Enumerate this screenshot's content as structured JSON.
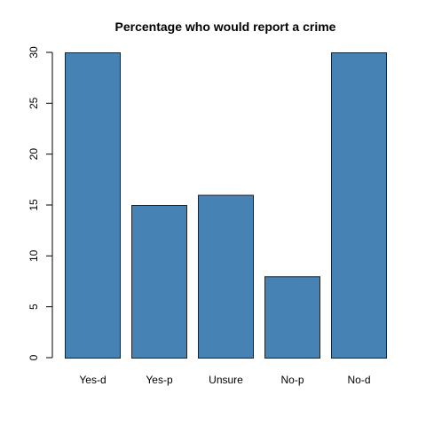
{
  "chart_data": {
    "type": "bar",
    "title": "Percentage who would report a crime",
    "xlabel": "",
    "ylabel": "",
    "categories": [
      "Yes-d",
      "Yes-p",
      "Unsure",
      "No-p",
      "No-d"
    ],
    "values": [
      30,
      15,
      16,
      8,
      30
    ],
    "yticks": [
      0,
      5,
      10,
      15,
      20,
      25,
      30
    ],
    "ylim": [
      0,
      30
    ],
    "bar_color": "#4682B4",
    "grid": false,
    "legend": "none"
  }
}
